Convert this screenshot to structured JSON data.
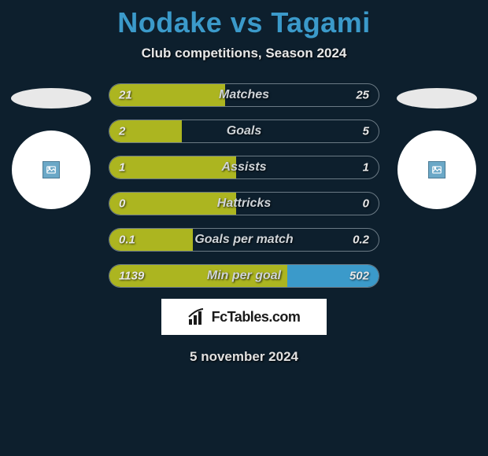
{
  "header": {
    "title": "Nodake vs Tagami",
    "subtitle": "Club competitions, Season 2024"
  },
  "colors": {
    "background": "#0d1f2d",
    "left_fill": "#acb520",
    "right_fill": "#3b9aca",
    "title_color": "#3b9aca",
    "text_color": "#e8e8e8",
    "bar_border": "#6b7a85"
  },
  "bars": [
    {
      "label": "Matches",
      "left_val": "21",
      "right_val": "25",
      "left_pct": 43,
      "right_pct": 0
    },
    {
      "label": "Goals",
      "left_val": "2",
      "right_val": "5",
      "left_pct": 27,
      "right_pct": 0
    },
    {
      "label": "Assists",
      "left_val": "1",
      "right_val": "1",
      "left_pct": 47,
      "right_pct": 0
    },
    {
      "label": "Hattricks",
      "left_val": "0",
      "right_val": "0",
      "left_pct": 47,
      "right_pct": 0
    },
    {
      "label": "Goals per match",
      "left_val": "0.1",
      "right_val": "0.2",
      "left_pct": 31,
      "right_pct": 0
    },
    {
      "label": "Min per goal",
      "left_val": "1139",
      "right_val": "502",
      "left_pct": 66,
      "right_pct": 34
    }
  ],
  "footer": {
    "logo_text": "FcTables.com",
    "date": "5 november 2024"
  }
}
